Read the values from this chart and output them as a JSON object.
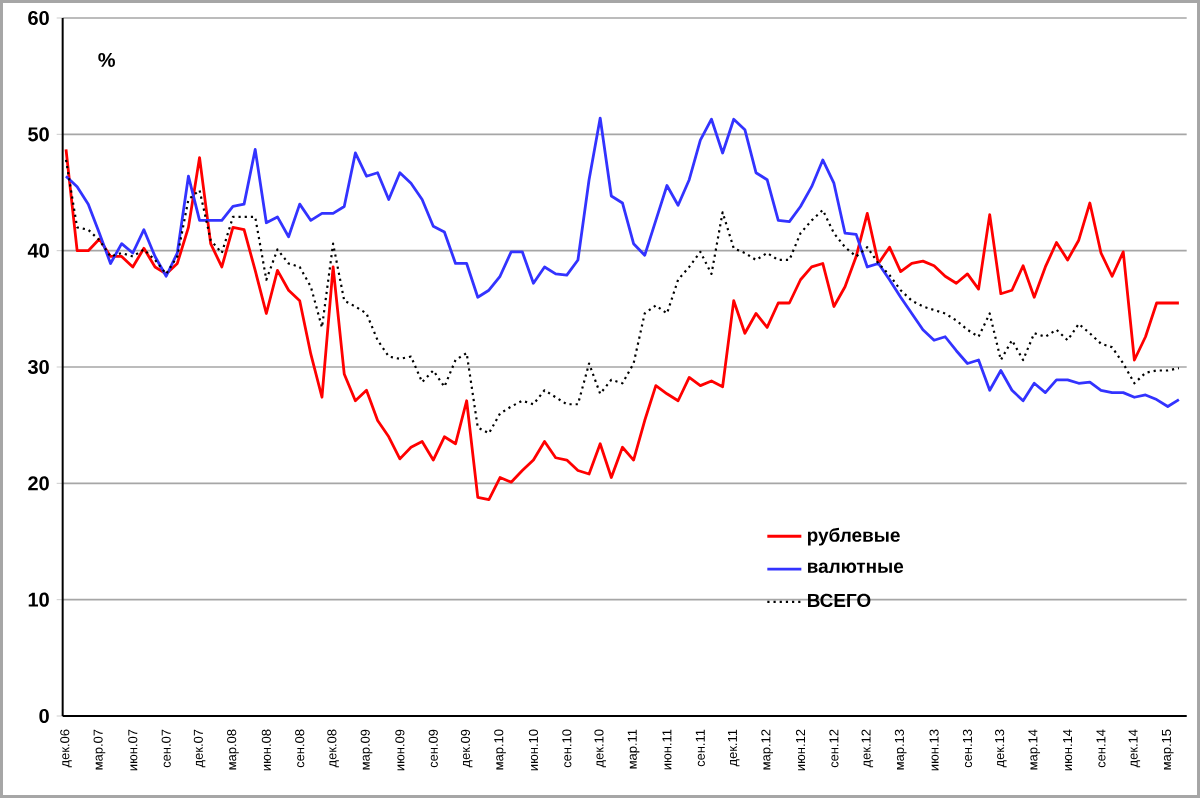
{
  "chart_data": {
    "type": "line",
    "ylabel": "%",
    "categories": [
      "дек.06",
      null,
      null,
      "мар.07",
      null,
      null,
      "июн.07",
      null,
      null,
      "сен.07",
      null,
      null,
      "дек.07",
      null,
      null,
      "мар.08",
      null,
      null,
      "июн.08",
      null,
      null,
      "сен.08",
      null,
      null,
      "дек.08",
      null,
      null,
      "мар.09",
      null,
      null,
      "июн.09",
      null,
      null,
      "сен.09",
      null,
      null,
      "дек.09",
      null,
      null,
      "мар.10",
      null,
      null,
      "июн.10",
      null,
      null,
      "сен.10",
      null,
      null,
      "дек.10",
      null,
      null,
      "мар.11",
      null,
      null,
      "июн.11",
      null,
      null,
      "сен.11",
      null,
      null,
      "дек.11",
      null,
      null,
      "мар.12",
      null,
      null,
      "июн.12",
      null,
      null,
      "сен.12",
      null,
      null,
      "дек.12",
      null,
      null,
      "мар.13",
      null,
      null,
      "июн.13",
      null,
      null,
      "сен.13",
      null,
      null,
      "дек.13",
      null,
      null,
      "мар.14",
      null,
      null,
      "июн.14",
      null,
      null,
      "сен.14",
      null,
      null,
      "дек.14",
      null,
      null,
      "мар.15",
      null
    ],
    "series": [
      {
        "name": "рублевые",
        "color": "#ff0000",
        "line_style": "solid",
        "values": [
          48.7,
          40,
          40,
          41,
          39.5,
          39.5,
          38.6,
          40.2,
          38.6,
          38,
          38.9,
          42,
          48,
          40.6,
          38.6,
          42,
          41.8,
          38.3,
          34.6,
          38.3,
          36.6,
          35.7,
          31.1,
          27.4,
          38.6,
          29.4,
          27.1,
          28,
          25.4,
          24,
          22.1,
          23.1,
          23.6,
          22,
          24,
          23.4,
          27.1,
          18.8,
          18.6,
          20.5,
          20.1,
          21.1,
          22,
          23.6,
          22.2,
          22,
          21.1,
          20.8,
          23.4,
          20.5,
          23.1,
          22,
          25.4,
          28.4,
          27.7,
          27.1,
          29.1,
          28.4,
          28.8,
          28.3,
          35.7,
          32.9,
          34.6,
          33.4,
          35.5,
          35.5,
          37.5,
          38.6,
          38.9,
          35.2,
          36.9,
          39.5,
          43.2,
          38.9,
          40.3,
          38.2,
          38.9,
          39.1,
          38.7,
          37.8,
          37.2,
          38,
          36.7,
          43.1,
          36.3,
          36.6,
          38.7,
          36,
          38.6,
          40.7,
          39.2,
          40.9,
          44.1,
          39.8,
          37.8,
          39.9,
          30.6,
          32.6,
          35.5,
          35.5,
          35.5
        ]
      },
      {
        "name": "валютные",
        "color": "#3333ff",
        "line_style": "solid",
        "values": [
          46.4,
          45.5,
          44,
          41.5,
          38.9,
          40.6,
          39.8,
          41.8,
          39.5,
          37.8,
          39.8,
          46.4,
          42.6,
          42.6,
          42.6,
          43.8,
          44,
          48.7,
          42.4,
          42.9,
          41.2,
          44,
          42.6,
          43.2,
          43.2,
          43.8,
          48.4,
          46.4,
          46.7,
          44.4,
          46.7,
          45.8,
          44.4,
          42.1,
          41.6,
          38.9,
          38.9,
          36,
          36.6,
          37.8,
          39.9,
          39.9,
          37.2,
          38.6,
          38,
          37.9,
          39.2,
          46.1,
          51.4,
          44.7,
          44.1,
          40.6,
          39.6,
          42.6,
          45.6,
          43.9,
          46.1,
          49.5,
          51.3,
          48.4,
          51.3,
          50.4,
          46.7,
          46.1,
          42.6,
          42.5,
          43.8,
          45.5,
          47.8,
          45.8,
          41.5,
          41.4,
          38.6,
          38.9,
          37.5,
          36,
          34.6,
          33.2,
          32.3,
          32.6,
          31.4,
          30.3,
          30.6,
          28,
          29.7,
          28,
          27.1,
          28.6,
          27.8,
          28.9,
          28.9,
          28.6,
          28.7,
          28,
          27.8,
          27.8,
          27.4,
          27.6,
          27.2,
          26.6,
          27.2
        ]
      },
      {
        "name": "ВСЕГО",
        "color": "#000000",
        "line_style": "dotted",
        "values": [
          47.8,
          42,
          41.8,
          40.9,
          39.5,
          39.8,
          39.5,
          40.1,
          39.2,
          38,
          39.5,
          44.4,
          45.2,
          40.9,
          39.8,
          42.9,
          42.9,
          42.9,
          37.5,
          40.1,
          38.9,
          38.6,
          36.9,
          33.4,
          40.6,
          35.7,
          35.2,
          34.6,
          32.3,
          30.9,
          30.7,
          30.9,
          28.7,
          29.7,
          28.3,
          30.6,
          31.2,
          24.8,
          24.3,
          26,
          26.6,
          27.1,
          26.8,
          28,
          27.4,
          26.8,
          26.8,
          30.3,
          27.7,
          28.9,
          28.6,
          30.3,
          34.6,
          35.3,
          34.6,
          37.5,
          38.6,
          39.9,
          38,
          43.3,
          40.2,
          39.8,
          39.2,
          39.8,
          39.2,
          39.2,
          41.5,
          42.6,
          43.5,
          41.5,
          40.3,
          39.5,
          40.3,
          38.9,
          37.9,
          36.6,
          35.7,
          35.2,
          34.9,
          34.6,
          34,
          33.2,
          32.6,
          34.6,
          30.6,
          32.3,
          30.6,
          32.9,
          32.6,
          33.2,
          32.3,
          33.7,
          32.9,
          32,
          31.7,
          30.3,
          28.6,
          29.5,
          29.7,
          29.7,
          29.9
        ]
      }
    ],
    "ylim": [
      0,
      60
    ],
    "yticks": [
      0,
      10,
      20,
      30,
      40,
      50,
      60
    ],
    "grid": "y",
    "legend": "right",
    "marker": "none"
  }
}
